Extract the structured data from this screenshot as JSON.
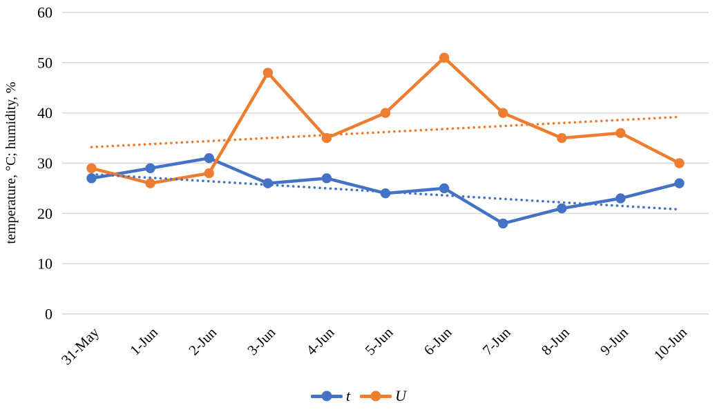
{
  "chart_data": {
    "type": "line",
    "title": "",
    "xlabel": "",
    "ylabel": "temperature, °C; humidity, %",
    "categories": [
      "31-May",
      "1-Jun",
      "2-Jun",
      "3-Jun",
      "4-Jun",
      "5-Jun",
      "6-Jun",
      "7-Jun",
      "8-Jun",
      "9-Jun",
      "10-Jun"
    ],
    "series": [
      {
        "name": "t",
        "values": [
          27,
          29,
          31,
          26,
          27,
          24,
          25,
          18,
          21,
          23,
          26
        ],
        "color": "#4472C4",
        "trendline": {
          "type": "linear",
          "start": 27.8,
          "end": 20.8,
          "style": "dotted"
        }
      },
      {
        "name": "U",
        "values": [
          29,
          26,
          28,
          48,
          35,
          40,
          51,
          40,
          35,
          36,
          30
        ],
        "color": "#ED7D31",
        "trendline": {
          "type": "linear",
          "start": 33.2,
          "end": 39.2,
          "style": "dotted"
        }
      }
    ],
    "ylim": [
      0,
      60
    ],
    "yticks": [
      0,
      10,
      20,
      30,
      40,
      50,
      60
    ],
    "grid": true,
    "gridline_color": "#D9D9D9",
    "text_color": "#000000",
    "legend_position": "bottom",
    "x_tick_rotation": -45
  }
}
